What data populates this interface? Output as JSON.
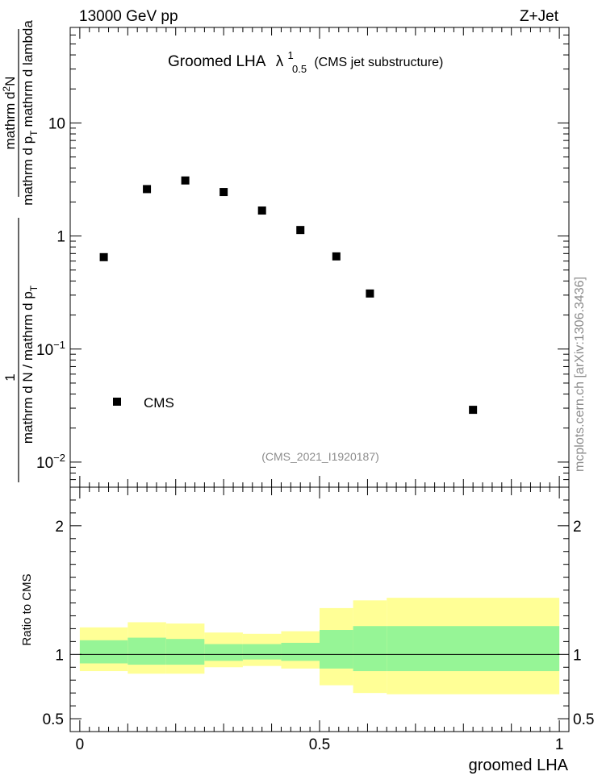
{
  "header": {
    "energy_label": "13000 GeV pp",
    "process_label": "Z+Jet"
  },
  "side_label": "mcplots.cern.ch [arXiv:1306.3436]",
  "colors": {
    "band_inner": "#96f596",
    "band_outer": "#ffff96",
    "marker": "#000000",
    "watermark": "#8c8c8c"
  },
  "chart_data": [
    {
      "type": "scatter",
      "title": "Groomed LHA",
      "title_symbol": "λ",
      "title_sup": "1",
      "title_sub": "0.5",
      "title_note": "(CMS jet substructure)",
      "yscale": "log",
      "ylim": [
        0.006,
        70
      ],
      "xlim": [
        -0.02,
        1.02
      ],
      "ylabel_num_1": "mathrm d",
      "ylabel_num_sup": "2",
      "ylabel_num_2": "N",
      "ylabel_den_1": "mathrm d p",
      "ylabel_den_sub1": "T",
      "ylabel_den_2": "mathrm d lambda",
      "ylabel_prefix_num": "1",
      "ylabel_prefix_den_1": "mathrm d N / mathrm d p",
      "ylabel_prefix_den_sub": "T",
      "ytick_labels": [
        {
          "base": "10",
          "exp": "−2",
          "value": 0.01
        },
        {
          "base": "10",
          "exp": "−1",
          "value": 0.1
        },
        {
          "base": "1",
          "exp": "",
          "value": 1
        },
        {
          "base": "10",
          "exp": "",
          "value": 10
        }
      ],
      "legend": [
        {
          "name": "CMS",
          "marker": "square"
        }
      ],
      "watermark": "(CMS_2021_I1920187)",
      "series": [
        {
          "name": "CMS",
          "x": [
            0.05,
            0.14,
            0.22,
            0.3,
            0.38,
            0.46,
            0.535,
            0.605,
            0.82
          ],
          "y": [
            0.65,
            2.6,
            3.1,
            2.45,
            1.68,
            1.13,
            0.66,
            0.31,
            0.029
          ]
        }
      ]
    },
    {
      "type": "area",
      "ylabel": "Ratio to CMS",
      "xlabel": "groomed LHA",
      "ylim": [
        0.4,
        2.3
      ],
      "xlim": [
        -0.02,
        1.02
      ],
      "xtick_labels": [
        {
          "label": "0",
          "value": 0
        },
        {
          "label": "0.5",
          "value": 0.5
        },
        {
          "label": "1",
          "value": 1
        }
      ],
      "ytick_labels": [
        {
          "label": "0.5",
          "value": 0.5
        },
        {
          "label": "1",
          "value": 1
        },
        {
          "label": "2",
          "value": 2
        }
      ],
      "reference_line": 1,
      "bins": [
        {
          "x0": 0.0,
          "x1": 0.1,
          "inner": [
            0.93,
            1.11
          ],
          "outer": [
            0.87,
            1.21
          ]
        },
        {
          "x0": 0.1,
          "x1": 0.18,
          "inner": [
            0.92,
            1.13
          ],
          "outer": [
            0.85,
            1.25
          ]
        },
        {
          "x0": 0.18,
          "x1": 0.26,
          "inner": [
            0.92,
            1.12
          ],
          "outer": [
            0.85,
            1.24
          ]
        },
        {
          "x0": 0.26,
          "x1": 0.34,
          "inner": [
            0.95,
            1.08
          ],
          "outer": [
            0.9,
            1.17
          ]
        },
        {
          "x0": 0.34,
          "x1": 0.42,
          "inner": [
            0.96,
            1.08
          ],
          "outer": [
            0.91,
            1.16
          ]
        },
        {
          "x0": 0.42,
          "x1": 0.5,
          "inner": [
            0.95,
            1.09
          ],
          "outer": [
            0.89,
            1.18
          ]
        },
        {
          "x0": 0.5,
          "x1": 0.57,
          "inner": [
            0.89,
            1.19
          ],
          "outer": [
            0.76,
            1.36
          ]
        },
        {
          "x0": 0.57,
          "x1": 0.64,
          "inner": [
            0.87,
            1.22
          ],
          "outer": [
            0.7,
            1.42
          ]
        },
        {
          "x0": 0.64,
          "x1": 1.0,
          "inner": [
            0.87,
            1.22
          ],
          "outer": [
            0.69,
            1.44
          ]
        }
      ]
    }
  ]
}
